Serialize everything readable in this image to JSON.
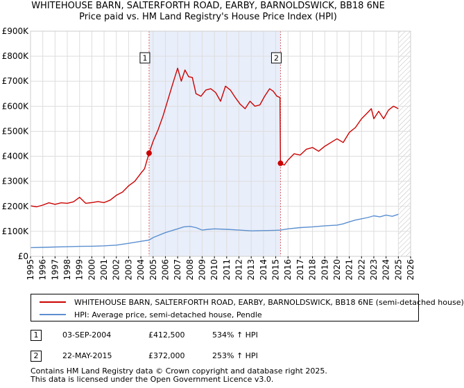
{
  "chart_data": {
    "type": "line",
    "title": "WHITEHOUSE BARN, SALTERFORTH ROAD, EARBY, BARNOLDSWICK, BB18 6NE",
    "subtitle": "Price paid vs. HM Land Registry's House Price Index (HPI)",
    "xlabel": "",
    "ylabel": "",
    "xlim": [
      1995.0,
      2026.0
    ],
    "ylim": [
      0,
      900000
    ],
    "y_ticks": [
      0,
      100000,
      200000,
      300000,
      400000,
      500000,
      600000,
      700000,
      800000,
      900000
    ],
    "y_tick_labels": [
      "£0",
      "£100K",
      "£200K",
      "£300K",
      "£400K",
      "£500K",
      "£600K",
      "£700K",
      "£800K",
      "£900K"
    ],
    "x_tick_labels": [
      "1995",
      "1996",
      "1997",
      "1998",
      "1999",
      "2000",
      "2001",
      "2002",
      "2003",
      "2004",
      "2005",
      "2006",
      "2007",
      "2008",
      "2009",
      "2010",
      "2011",
      "2012",
      "2013",
      "2014",
      "2015",
      "2016",
      "2017",
      "2018",
      "2019",
      "2020",
      "2021",
      "2022",
      "2023",
      "2024",
      "2025",
      "2026"
    ],
    "grid": true,
    "shaded_region": [
      2004.67,
      2015.39
    ],
    "hatched_from": 2025.0,
    "series": [
      {
        "name": "WHITEHOUSE BARN, SALTERFORTH ROAD, EARBY, BARNOLDSWICK, BB18 6NE (semi-detached house)",
        "color": "#cc0000",
        "x": [
          1995.0,
          1995.5,
          1996.0,
          1996.5,
          1997.0,
          1997.5,
          1998.0,
          1998.5,
          1999.0,
          1999.5,
          2000.0,
          2000.5,
          2001.0,
          2001.5,
          2002.0,
          2002.5,
          2003.0,
          2003.5,
          2004.0,
          2004.3,
          2004.67,
          2005.0,
          2005.4,
          2005.8,
          2006.2,
          2006.6,
          2007.0,
          2007.3,
          2007.6,
          2007.9,
          2008.2,
          2008.5,
          2008.9,
          2009.3,
          2009.7,
          2010.1,
          2010.5,
          2010.9,
          2011.3,
          2011.7,
          2012.1,
          2012.5,
          2012.9,
          2013.3,
          2013.7,
          2014.1,
          2014.5,
          2014.8,
          2015.1,
          2015.35,
          2015.39,
          2015.7,
          2016.0,
          2016.5,
          2017.0,
          2017.5,
          2018.0,
          2018.5,
          2019.0,
          2019.5,
          2020.0,
          2020.5,
          2021.0,
          2021.5,
          2022.0,
          2022.4,
          2022.8,
          2023.0,
          2023.4,
          2023.8,
          2024.2,
          2024.6,
          2025.0
        ],
        "values": [
          202000,
          198000,
          205000,
          214000,
          208000,
          214000,
          212000,
          218000,
          236000,
          212000,
          215000,
          219000,
          215000,
          225000,
          244000,
          257000,
          282000,
          300000,
          332000,
          350000,
          412500,
          460000,
          505000,
          560000,
          625000,
          690000,
          752000,
          700000,
          745000,
          718000,
          715000,
          650000,
          640000,
          665000,
          670000,
          655000,
          620000,
          680000,
          665000,
          635000,
          608000,
          590000,
          620000,
          600000,
          605000,
          640000,
          670000,
          660000,
          640000,
          635000,
          372000,
          365000,
          385000,
          410000,
          405000,
          428000,
          435000,
          420000,
          440000,
          455000,
          470000,
          455000,
          495000,
          515000,
          550000,
          570000,
          590000,
          550000,
          580000,
          550000,
          585000,
          600000,
          590000
        ]
      },
      {
        "name": "HPI: Average price, semi-detached house, Pendle",
        "color": "#5b8fd0",
        "x": [
          1995.0,
          1996.0,
          1997.0,
          1998.0,
          1999.0,
          2000.0,
          2001.0,
          2002.0,
          2003.0,
          2004.0,
          2004.67,
          2005.0,
          2006.0,
          2007.0,
          2007.5,
          2008.0,
          2008.5,
          2009.0,
          2009.5,
          2010.0,
          2011.0,
          2012.0,
          2013.0,
          2014.0,
          2015.0,
          2015.39,
          2016.0,
          2017.0,
          2018.0,
          2019.0,
          2020.0,
          2020.5,
          2021.0,
          2021.5,
          2022.0,
          2022.5,
          2023.0,
          2023.5,
          2024.0,
          2024.5,
          2025.0
        ],
        "values": [
          35000,
          36000,
          37500,
          38500,
          40000,
          40500,
          42000,
          45000,
          52000,
          60000,
          65000,
          75000,
          95000,
          110000,
          118000,
          120000,
          115000,
          105000,
          108000,
          110000,
          108000,
          105000,
          102000,
          103000,
          104000,
          105000,
          110000,
          115000,
          118000,
          122000,
          125000,
          130000,
          138000,
          145000,
          150000,
          155000,
          162000,
          158000,
          165000,
          160000,
          168000
        ]
      }
    ],
    "markers": [
      {
        "label": "1",
        "x": 2004.67,
        "value": 412500
      },
      {
        "label": "2",
        "x": 2015.39,
        "value": 372000
      }
    ]
  },
  "legend": {
    "entries": [
      {
        "label": "WHITEHOUSE BARN, SALTERFORTH ROAD, EARBY, BARNOLDSWICK, BB18 6NE (semi-detached house)",
        "color": "#cc0000"
      },
      {
        "label": "HPI: Average price, semi-detached house, Pendle",
        "color": "#5b8fd0"
      }
    ]
  },
  "transactions": [
    {
      "num": "1",
      "date": "03-SEP-2004",
      "price": "£412,500",
      "hpi": "534% ↑ HPI"
    },
    {
      "num": "2",
      "date": "22-MAY-2015",
      "price": "£372,000",
      "hpi": "253% ↑ HPI"
    }
  ],
  "footer": {
    "line1": "Contains HM Land Registry data © Crown copyright and database right 2025.",
    "line2": "This data is licensed under the Open Government Licence v3.0."
  }
}
